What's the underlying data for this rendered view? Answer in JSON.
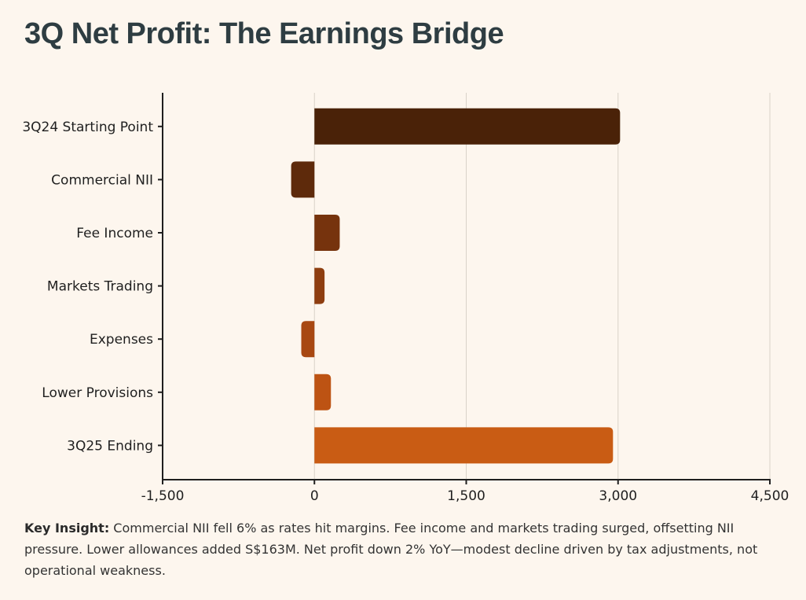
{
  "title": "3Q Net Profit: The Earnings Bridge",
  "chart_data": {
    "type": "bar",
    "orientation": "horizontal",
    "categories": [
      "3Q24 Starting Point",
      "Commercial NII",
      "Fee Income",
      "Markets Trading",
      "Expenses",
      "Lower Provisions",
      "3Q25 Ending"
    ],
    "values": [
      3020,
      -230,
      250,
      100,
      -130,
      163,
      2950
    ],
    "colors": [
      "#4a2208",
      "#5e2a0b",
      "#76330d",
      "#8e3e10",
      "#a84812",
      "#bd5313",
      "#c95c14"
    ],
    "xlim": [
      -1500,
      4500
    ],
    "xticks": [
      -1500,
      0,
      1500,
      3000,
      4500
    ],
    "xtick_labels": [
      "-1,500",
      "0",
      "1,500",
      "3,000",
      "4,500"
    ],
    "grid": true,
    "xlabel": "",
    "ylabel": ""
  },
  "insight": {
    "label": "Key Insight:",
    "text": " Commercial NII fell 6% as rates hit margins. Fee income and markets trading surged, offsetting NII pressure. Lower allowances added S$163M. Net profit down 2% YoY—modest decline driven by tax adjustments, not operational weakness."
  }
}
